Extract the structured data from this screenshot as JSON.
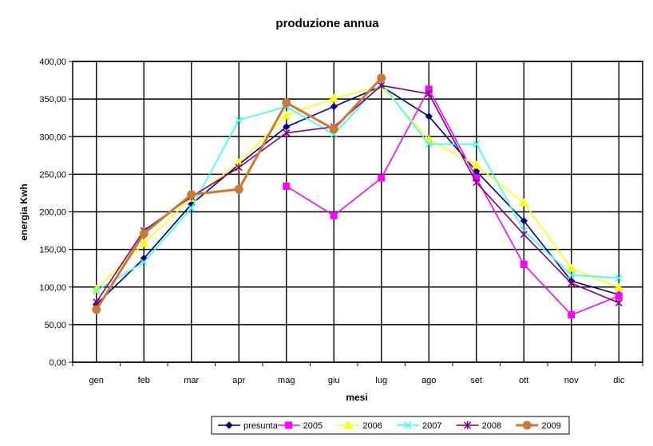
{
  "chart_data": {
    "type": "line",
    "title": "produzione annua",
    "xlabel": "mesi",
    "ylabel": "energia Kwh",
    "ylim": [
      0,
      400
    ],
    "y_ticks": [
      "0,00",
      "50,00",
      "100,00",
      "150,00",
      "200,00",
      "250,00",
      "300,00",
      "350,00",
      "400,00"
    ],
    "grid": true,
    "legend_position": "bottom",
    "categories": [
      "gen",
      "feb",
      "mar",
      "apr",
      "mag",
      "giu",
      "lug",
      "ago",
      "set",
      "ott",
      "nov",
      "dic"
    ],
    "series": [
      {
        "name": "presunta",
        "color": "#000080",
        "marker": "diamond",
        "values": [
          77,
          138,
          210,
          263,
          313,
          340,
          367,
          327,
          254,
          188,
          108,
          90
        ]
      },
      {
        "name": "2005",
        "color": "#FF00FF",
        "marker": "square",
        "values": [
          null,
          null,
          null,
          null,
          234,
          195,
          245,
          363,
          245,
          130,
          63,
          88
        ]
      },
      {
        "name": "2006",
        "color": "#FFFF00",
        "marker": "triangle",
        "values": [
          97,
          158,
          218,
          265,
          328,
          351,
          367,
          296,
          262,
          212,
          125,
          99
        ]
      },
      {
        "name": "2007",
        "color": "#33FFFF",
        "marker": "x",
        "values": [
          95,
          133,
          205,
          322,
          340,
          303,
          371,
          290,
          290,
          175,
          116,
          112
        ]
      },
      {
        "name": "2008",
        "color": "#800080",
        "marker": "star",
        "values": [
          80,
          175,
          220,
          259,
          305,
          313,
          368,
          357,
          239,
          170,
          105,
          79
        ]
      },
      {
        "name": "2009",
        "color": "#CC7A33",
        "marker": "circle",
        "values": [
          70,
          171,
          223,
          230,
          345,
          310,
          378,
          null,
          null,
          null,
          null,
          null
        ]
      }
    ]
  }
}
